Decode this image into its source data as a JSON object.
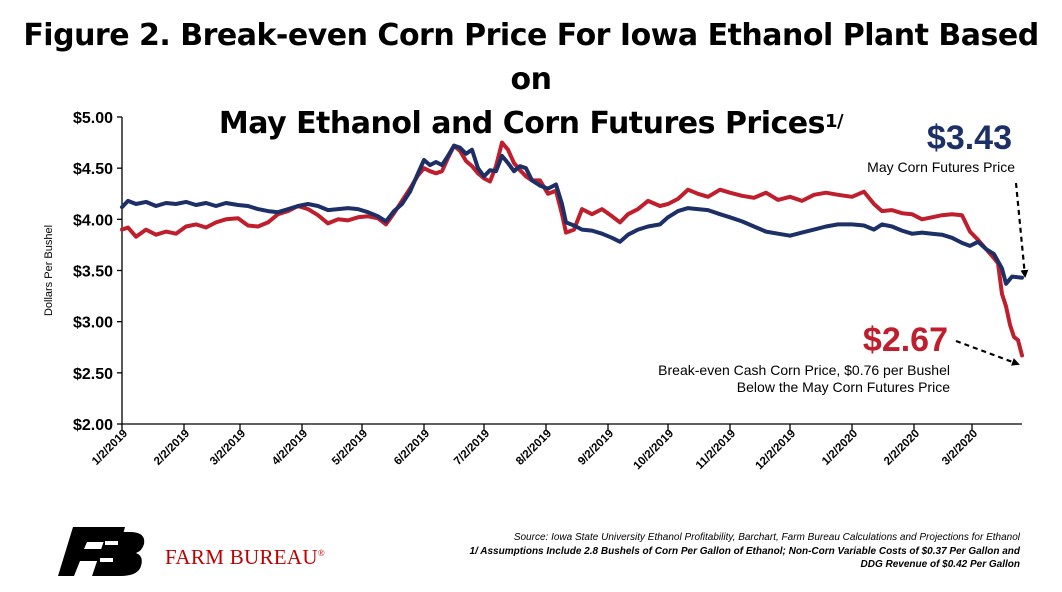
{
  "title": {
    "line1": "Figure 2. Break-even Corn Price For Iowa Ethanol Plant Based on",
    "line2": "May Ethanol and Corn Futures Prices",
    "footnote_mark": "1/"
  },
  "colors": {
    "futures": "#1c2f66",
    "breakeven": "#bf1e2d",
    "axis": "#000000"
  },
  "chart_data": {
    "type": "line",
    "title": "Figure 2. Break-even Corn Price For Iowa Ethanol Plant Based on May Ethanol and Corn Futures Prices",
    "xlabel": "",
    "ylabel": "Dollars Per Bushel",
    "ylim": [
      2.0,
      5.0
    ],
    "yticks": [
      "$5.00",
      "$4.50",
      "$4.00",
      "$3.50",
      "$3.00",
      "$2.50",
      "$2.00"
    ],
    "yticks_values": [
      5.0,
      4.5,
      4.0,
      3.5,
      3.0,
      2.5,
      2.0
    ],
    "xticks": [
      "1/2/2019",
      "2/2/2019",
      "3/2/2019",
      "4/2/2019",
      "5/2/2019",
      "6/2/2019",
      "7/2/2019",
      "8/2/2019",
      "9/2/2019",
      "10/2/2019",
      "11/2/2019",
      "12/2/2019",
      "1/2/2020",
      "2/2/2020",
      "3/2/2020"
    ],
    "xlim": [
      "2019-01-02",
      "2020-03-27"
    ],
    "grid": false,
    "series": [
      {
        "name": "May Corn Futures Price",
        "color": "#1c2f66",
        "points": [
          [
            "2019-01-02",
            4.12
          ],
          [
            "2019-01-05",
            4.18
          ],
          [
            "2019-01-09",
            4.15
          ],
          [
            "2019-01-14",
            4.17
          ],
          [
            "2019-01-19",
            4.13
          ],
          [
            "2019-01-24",
            4.16
          ],
          [
            "2019-01-29",
            4.15
          ],
          [
            "2019-02-03",
            4.17
          ],
          [
            "2019-02-08",
            4.14
          ],
          [
            "2019-02-13",
            4.16
          ],
          [
            "2019-02-18",
            4.13
          ],
          [
            "2019-02-23",
            4.16
          ],
          [
            "2019-03-01",
            4.14
          ],
          [
            "2019-03-06",
            4.13
          ],
          [
            "2019-03-11",
            4.1
          ],
          [
            "2019-03-16",
            4.08
          ],
          [
            "2019-03-21",
            4.07
          ],
          [
            "2019-03-26",
            4.1
          ],
          [
            "2019-03-31",
            4.13
          ],
          [
            "2019-04-05",
            4.15
          ],
          [
            "2019-04-10",
            4.13
          ],
          [
            "2019-04-15",
            4.09
          ],
          [
            "2019-04-20",
            4.1
          ],
          [
            "2019-04-25",
            4.11
          ],
          [
            "2019-04-30",
            4.1
          ],
          [
            "2019-05-05",
            4.07
          ],
          [
            "2019-05-10",
            4.03
          ],
          [
            "2019-05-14",
            3.98
          ],
          [
            "2019-05-18",
            4.08
          ],
          [
            "2019-05-22",
            4.15
          ],
          [
            "2019-05-26",
            4.27
          ],
          [
            "2019-05-30",
            4.45
          ],
          [
            "2019-06-02",
            4.58
          ],
          [
            "2019-06-05",
            4.53
          ],
          [
            "2019-06-08",
            4.56
          ],
          [
            "2019-06-11",
            4.53
          ],
          [
            "2019-06-14",
            4.62
          ],
          [
            "2019-06-17",
            4.72
          ],
          [
            "2019-06-20",
            4.7
          ],
          [
            "2019-06-23",
            4.64
          ],
          [
            "2019-06-26",
            4.68
          ],
          [
            "2019-06-29",
            4.5
          ],
          [
            "2019-07-02",
            4.42
          ],
          [
            "2019-07-05",
            4.48
          ],
          [
            "2019-07-08",
            4.47
          ],
          [
            "2019-07-11",
            4.62
          ],
          [
            "2019-07-14",
            4.55
          ],
          [
            "2019-07-17",
            4.47
          ],
          [
            "2019-07-20",
            4.52
          ],
          [
            "2019-07-23",
            4.5
          ],
          [
            "2019-07-26",
            4.38
          ],
          [
            "2019-07-30",
            4.33
          ],
          [
            "2019-08-03",
            4.3
          ],
          [
            "2019-08-07",
            4.34
          ],
          [
            "2019-08-10",
            4.15
          ],
          [
            "2019-08-12",
            3.97
          ],
          [
            "2019-08-16",
            3.94
          ],
          [
            "2019-08-20",
            3.9
          ],
          [
            "2019-08-25",
            3.89
          ],
          [
            "2019-08-30",
            3.86
          ],
          [
            "2019-09-04",
            3.82
          ],
          [
            "2019-09-08",
            3.78
          ],
          [
            "2019-09-12",
            3.85
          ],
          [
            "2019-09-17",
            3.9
          ],
          [
            "2019-09-22",
            3.93
          ],
          [
            "2019-09-28",
            3.95
          ],
          [
            "2019-10-02",
            4.02
          ],
          [
            "2019-10-07",
            4.08
          ],
          [
            "2019-10-12",
            4.11
          ],
          [
            "2019-10-17",
            4.1
          ],
          [
            "2019-10-22",
            4.09
          ],
          [
            "2019-10-28",
            4.05
          ],
          [
            "2019-11-02",
            4.02
          ],
          [
            "2019-11-08",
            3.98
          ],
          [
            "2019-11-14",
            3.93
          ],
          [
            "2019-11-20",
            3.88
          ],
          [
            "2019-11-26",
            3.86
          ],
          [
            "2019-12-02",
            3.84
          ],
          [
            "2019-12-08",
            3.87
          ],
          [
            "2019-12-14",
            3.9
          ],
          [
            "2019-12-20",
            3.93
          ],
          [
            "2019-12-26",
            3.95
          ],
          [
            "2020-01-02",
            3.95
          ],
          [
            "2020-01-08",
            3.94
          ],
          [
            "2020-01-13",
            3.9
          ],
          [
            "2020-01-17",
            3.95
          ],
          [
            "2020-01-22",
            3.93
          ],
          [
            "2020-01-27",
            3.89
          ],
          [
            "2020-02-01",
            3.86
          ],
          [
            "2020-02-06",
            3.87
          ],
          [
            "2020-02-11",
            3.86
          ],
          [
            "2020-02-16",
            3.85
          ],
          [
            "2020-02-21",
            3.82
          ],
          [
            "2020-02-26",
            3.77
          ],
          [
            "2020-03-01",
            3.74
          ],
          [
            "2020-03-05",
            3.78
          ],
          [
            "2020-03-09",
            3.71
          ],
          [
            "2020-03-13",
            3.66
          ],
          [
            "2020-03-17",
            3.52
          ],
          [
            "2020-03-19",
            3.37
          ],
          [
            "2020-03-22",
            3.44
          ],
          [
            "2020-03-27",
            3.43
          ]
        ]
      },
      {
        "name": "Break-even Cash Corn Price",
        "color": "#bf1e2d",
        "points": [
          [
            "2019-01-02",
            3.9
          ],
          [
            "2019-01-05",
            3.92
          ],
          [
            "2019-01-09",
            3.83
          ],
          [
            "2019-01-14",
            3.9
          ],
          [
            "2019-01-19",
            3.85
          ],
          [
            "2019-01-24",
            3.88
          ],
          [
            "2019-01-29",
            3.86
          ],
          [
            "2019-02-03",
            3.93
          ],
          [
            "2019-02-08",
            3.95
          ],
          [
            "2019-02-13",
            3.92
          ],
          [
            "2019-02-18",
            3.97
          ],
          [
            "2019-02-23",
            4.0
          ],
          [
            "2019-03-01",
            4.01
          ],
          [
            "2019-03-06",
            3.94
          ],
          [
            "2019-03-11",
            3.93
          ],
          [
            "2019-03-16",
            3.97
          ],
          [
            "2019-03-21",
            4.05
          ],
          [
            "2019-03-26",
            4.08
          ],
          [
            "2019-03-31",
            4.13
          ],
          [
            "2019-04-05",
            4.1
          ],
          [
            "2019-04-10",
            4.04
          ],
          [
            "2019-04-15",
            3.96
          ],
          [
            "2019-04-20",
            4.0
          ],
          [
            "2019-04-25",
            3.99
          ],
          [
            "2019-04-30",
            4.02
          ],
          [
            "2019-05-05",
            4.03
          ],
          [
            "2019-05-10",
            4.01
          ],
          [
            "2019-05-14",
            3.95
          ],
          [
            "2019-05-18",
            4.06
          ],
          [
            "2019-05-22",
            4.18
          ],
          [
            "2019-05-26",
            4.3
          ],
          [
            "2019-05-30",
            4.43
          ],
          [
            "2019-06-02",
            4.5
          ],
          [
            "2019-06-05",
            4.47
          ],
          [
            "2019-06-08",
            4.45
          ],
          [
            "2019-06-11",
            4.47
          ],
          [
            "2019-06-14",
            4.6
          ],
          [
            "2019-06-17",
            4.72
          ],
          [
            "2019-06-20",
            4.67
          ],
          [
            "2019-06-23",
            4.57
          ],
          [
            "2019-06-26",
            4.52
          ],
          [
            "2019-06-29",
            4.45
          ],
          [
            "2019-07-02",
            4.4
          ],
          [
            "2019-07-05",
            4.37
          ],
          [
            "2019-07-08",
            4.52
          ],
          [
            "2019-07-11",
            4.75
          ],
          [
            "2019-07-14",
            4.68
          ],
          [
            "2019-07-17",
            4.55
          ],
          [
            "2019-07-20",
            4.48
          ],
          [
            "2019-07-23",
            4.42
          ],
          [
            "2019-07-26",
            4.38
          ],
          [
            "2019-07-30",
            4.38
          ],
          [
            "2019-08-03",
            4.25
          ],
          [
            "2019-08-07",
            4.28
          ],
          [
            "2019-08-10",
            4.05
          ],
          [
            "2019-08-12",
            3.87
          ],
          [
            "2019-08-16",
            3.9
          ],
          [
            "2019-08-20",
            4.1
          ],
          [
            "2019-08-25",
            4.05
          ],
          [
            "2019-08-30",
            4.1
          ],
          [
            "2019-09-04",
            4.03
          ],
          [
            "2019-09-08",
            3.97
          ],
          [
            "2019-09-12",
            4.05
          ],
          [
            "2019-09-17",
            4.1
          ],
          [
            "2019-09-22",
            4.18
          ],
          [
            "2019-09-28",
            4.13
          ],
          [
            "2019-10-02",
            4.15
          ],
          [
            "2019-10-07",
            4.2
          ],
          [
            "2019-10-12",
            4.29
          ],
          [
            "2019-10-17",
            4.25
          ],
          [
            "2019-10-22",
            4.22
          ],
          [
            "2019-10-28",
            4.29
          ],
          [
            "2019-11-02",
            4.26
          ],
          [
            "2019-11-08",
            4.23
          ],
          [
            "2019-11-14",
            4.21
          ],
          [
            "2019-11-20",
            4.26
          ],
          [
            "2019-11-26",
            4.19
          ],
          [
            "2019-12-02",
            4.22
          ],
          [
            "2019-12-08",
            4.18
          ],
          [
            "2019-12-14",
            4.24
          ],
          [
            "2019-12-20",
            4.26
          ],
          [
            "2019-12-26",
            4.24
          ],
          [
            "2020-01-02",
            4.22
          ],
          [
            "2020-01-08",
            4.27
          ],
          [
            "2020-01-13",
            4.15
          ],
          [
            "2020-01-17",
            4.08
          ],
          [
            "2020-01-22",
            4.09
          ],
          [
            "2020-01-27",
            4.06
          ],
          [
            "2020-02-01",
            4.05
          ],
          [
            "2020-02-06",
            4.0
          ],
          [
            "2020-02-11",
            4.02
          ],
          [
            "2020-02-16",
            4.04
          ],
          [
            "2020-02-21",
            4.05
          ],
          [
            "2020-02-26",
            4.04
          ],
          [
            "2020-03-01",
            3.88
          ],
          [
            "2020-03-05",
            3.8
          ],
          [
            "2020-03-09",
            3.71
          ],
          [
            "2020-03-13",
            3.62
          ],
          [
            "2020-03-15",
            3.57
          ],
          [
            "2020-03-17",
            3.27
          ],
          [
            "2020-03-19",
            3.15
          ],
          [
            "2020-03-21",
            2.97
          ],
          [
            "2020-03-23",
            2.85
          ],
          [
            "2020-03-25",
            2.82
          ],
          [
            "2020-03-27",
            2.67
          ]
        ]
      }
    ]
  },
  "annotations": {
    "futures_value": "$3.43",
    "futures_label": "May Corn Futures Price",
    "breakeven_value": "$2.67",
    "breakeven_label_1": "Break-even Cash Corn Price, $0.76 per Bushel",
    "breakeven_label_2": "Below the May Corn Futures Price"
  },
  "source": {
    "line1": "Source: Iowa State University Ethanol Profitability, Barchart, Farm Bureau Calculations and Projections for Ethanol",
    "line2": "1/ Assumptions Include 2.8 Bushels of Corn Per Gallon of Ethanol; Non-Corn Variable Costs of $0.37 Per Gallon and",
    "line3": "DDG Revenue of $0.42 Per Gallon"
  },
  "logo": {
    "name": "FARM BUREAU",
    "mark": "®"
  }
}
